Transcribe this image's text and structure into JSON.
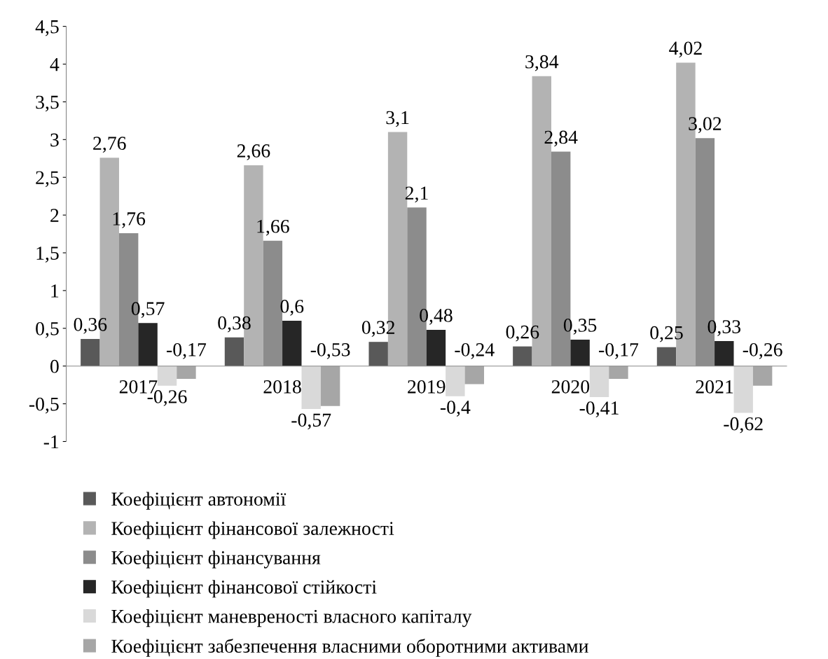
{
  "chart_data": {
    "type": "bar",
    "categories": [
      "2017",
      "2018",
      "2019",
      "2020",
      "2021"
    ],
    "series": [
      {
        "name": "Коефіцієнт автономії",
        "color": "#595959",
        "values": [
          0.36,
          0.38,
          0.32,
          0.26,
          0.25
        ],
        "value_labels": [
          "0,36",
          "0,38",
          "0,32",
          "0,26",
          "0,25"
        ]
      },
      {
        "name": "Коефіцієнт фінансової залежності",
        "color": "#b3b3b3",
        "values": [
          2.76,
          2.66,
          3.1,
          3.84,
          4.02
        ],
        "value_labels": [
          "2,76",
          "2,66",
          "3,1",
          "3,84",
          "4,02"
        ]
      },
      {
        "name": "Коефіцієнт фінансування",
        "color": "#8c8c8c",
        "values": [
          1.76,
          1.66,
          2.1,
          2.84,
          3.02
        ],
        "value_labels": [
          "1,76",
          "1,66",
          "2,1",
          "2,84",
          "3,02"
        ]
      },
      {
        "name": "Коефіцієнт фінансової стійкості",
        "color": "#262626",
        "values": [
          0.57,
          0.6,
          0.48,
          0.35,
          0.33
        ],
        "value_labels": [
          "0,57",
          "0,6",
          "0,48",
          "0,35",
          "0,33"
        ]
      },
      {
        "name": "Коефіцієнт маневреності власного капіталу",
        "color": "#d9d9d9",
        "values": [
          -0.26,
          -0.57,
          -0.4,
          -0.41,
          -0.62
        ],
        "value_labels": [
          "-0,26",
          "-0,57",
          "-0,4",
          "-0,41",
          "-0,62"
        ]
      },
      {
        "name": "Коефіцієнт забезпечення власними оборотними активами",
        "color": "#a6a6a6",
        "values": [
          -0.17,
          -0.53,
          -0.24,
          -0.17,
          -0.26
        ],
        "value_labels": [
          "-0,17",
          "-0,53",
          "-0,24",
          "-0,17",
          "-0,26"
        ]
      }
    ],
    "ylim": [
      -1,
      4.5
    ],
    "yticks": [
      {
        "value": -1,
        "label": "-1"
      },
      {
        "value": -0.5,
        "label": "-0,5"
      },
      0,
      {
        "value": 0.5,
        "label": "0,5"
      },
      1,
      {
        "value": 1.5,
        "label": "1,5"
      },
      2,
      {
        "value": 2.5,
        "label": "2,5"
      },
      3,
      {
        "value": 3.5,
        "label": "3,5"
      },
      4,
      {
        "value": 4.5,
        "label": "4,5"
      }
    ],
    "grid": false,
    "legend": "bottom"
  }
}
